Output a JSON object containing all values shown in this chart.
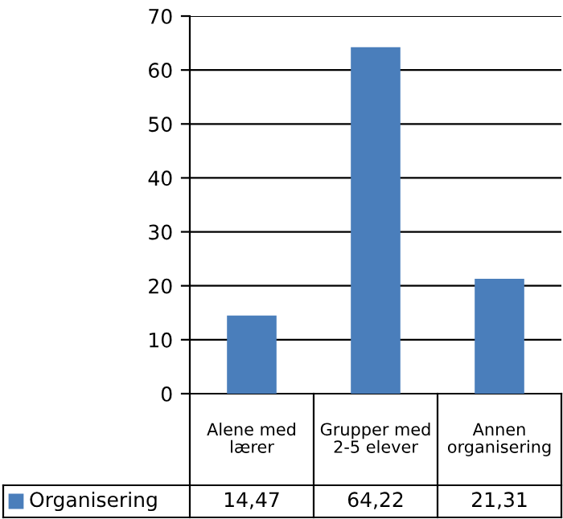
{
  "chart_data": {
    "type": "bar",
    "categories": [
      "Alene med\nlærer",
      "Grupper med\n2-5 elever",
      "Annen\norganisering"
    ],
    "series": [
      {
        "name": "Organisering",
        "color": "#4a7ebb",
        "values": [
          14.47,
          64.22,
          21.31
        ],
        "value_labels": [
          "14,47",
          "64,22",
          "21,31"
        ]
      }
    ],
    "ylim": [
      0,
      70
    ],
    "yticks": [
      0,
      10,
      20,
      30,
      40,
      50,
      60,
      70
    ],
    "grid": "y",
    "legend": "bottom"
  }
}
